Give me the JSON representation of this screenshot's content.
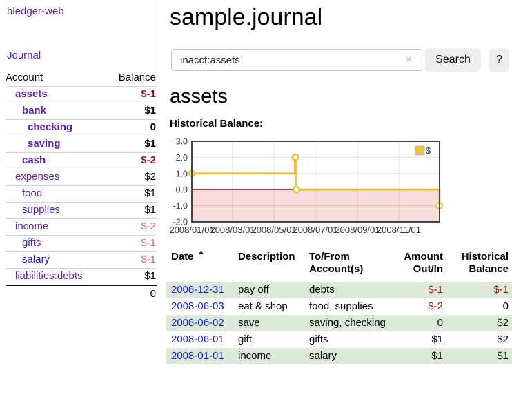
{
  "app": {
    "brand": "hledger-web",
    "nav_journal": "Journal"
  },
  "sidebar": {
    "header": {
      "account": "Account",
      "balance": "Balance"
    },
    "accounts": [
      {
        "name": "assets",
        "depth": 1,
        "bold": true,
        "blue": false,
        "balance": "$-1",
        "balance_style": "neg"
      },
      {
        "name": "bank",
        "depth": 2,
        "bold": true,
        "blue": false,
        "balance": "$1",
        "balance_style": ""
      },
      {
        "name": "checking",
        "depth": 3,
        "bold": true,
        "blue": false,
        "balance": "0",
        "balance_style": ""
      },
      {
        "name": "saving",
        "depth": 3,
        "bold": true,
        "blue": false,
        "balance": "$1",
        "balance_style": ""
      },
      {
        "name": "cash",
        "depth": 2,
        "bold": true,
        "blue": false,
        "balance": "$-2",
        "balance_style": "neg"
      },
      {
        "name": "expenses",
        "depth": 1,
        "bold": false,
        "blue": false,
        "balance": "$2",
        "balance_style": ""
      },
      {
        "name": "food",
        "depth": 2,
        "bold": false,
        "blue": false,
        "balance": "$1",
        "balance_style": ""
      },
      {
        "name": "supplies",
        "depth": 2,
        "bold": false,
        "blue": false,
        "balance": "$1",
        "balance_style": ""
      },
      {
        "name": "income",
        "depth": 1,
        "bold": false,
        "blue": false,
        "balance": "$-2",
        "balance_style": "soft"
      },
      {
        "name": "gifts",
        "depth": 2,
        "bold": false,
        "blue": false,
        "balance": "$-1",
        "balance_style": "soft"
      },
      {
        "name": "salary",
        "depth": 2,
        "bold": false,
        "blue": true,
        "balance": "$-1",
        "balance_style": "soft"
      },
      {
        "name": "liabilities:debts",
        "depth": 1,
        "bold": false,
        "blue": false,
        "balance": "$1",
        "balance_style": ""
      }
    ],
    "total": "0"
  },
  "header": {
    "title": "sample.journal"
  },
  "search": {
    "value": "inacct:assets",
    "clear_icon": "×",
    "button": "Search",
    "help_button": "?"
  },
  "account_page": {
    "title": "assets",
    "chart_label": "Historical Balance:"
  },
  "chart_data": {
    "type": "line",
    "step": true,
    "title": "Historical Balance",
    "legend": "$",
    "legend_position": "top-right",
    "series": [
      {
        "name": "$",
        "color": "#edc240",
        "points": [
          [
            "2008-01-01",
            1
          ],
          [
            "2008-06-01",
            2
          ],
          [
            "2008-06-02",
            2
          ],
          [
            "2008-06-03",
            0
          ],
          [
            "2008-12-31",
            -1
          ]
        ]
      }
    ],
    "x_range": [
      "2008-01-01",
      "2008-12-31"
    ],
    "x_ticks": [
      "2008/01/01",
      "2008/03/01",
      "2008/05/01",
      "2008/07/01",
      "2008/09/01",
      "2008/11/01"
    ],
    "y_ticks": [
      "3.0",
      "2.0",
      "1.0",
      "0.0",
      "-1.0",
      "-2.0"
    ],
    "ylim": [
      -2,
      3
    ],
    "grid": true,
    "negative_region_fill": "#fbdcdc",
    "zero_line_color": "#aa0000"
  },
  "register": {
    "headers": {
      "date": "Date",
      "sort_icon": "⌃",
      "description": "Description",
      "tofrom": "To/From Account(s)",
      "amount": "Amount Out/In",
      "balance": "Historical Balance"
    },
    "rows": [
      {
        "date": "2008-12-31",
        "description": "pay off",
        "accounts": "debts",
        "amount": "$-1",
        "amount_neg": true,
        "balance": "$-1",
        "balance_neg": true
      },
      {
        "date": "2008-06-03",
        "description": "eat & shop",
        "accounts": "food, supplies",
        "amount": "$-2",
        "amount_neg": true,
        "balance": "0",
        "balance_neg": false
      },
      {
        "date": "2008-06-02",
        "description": "save",
        "accounts": "saving, checking",
        "amount": "0",
        "amount_neg": false,
        "balance": "$2",
        "balance_neg": false
      },
      {
        "date": "2008-06-01",
        "description": "gift",
        "accounts": "gifts",
        "amount": "$1",
        "amount_neg": false,
        "balance": "$2",
        "balance_neg": false
      },
      {
        "date": "2008-01-01",
        "description": "income",
        "accounts": "salary",
        "amount": "$1",
        "amount_neg": false,
        "balance": "$1",
        "balance_neg": false
      }
    ]
  }
}
